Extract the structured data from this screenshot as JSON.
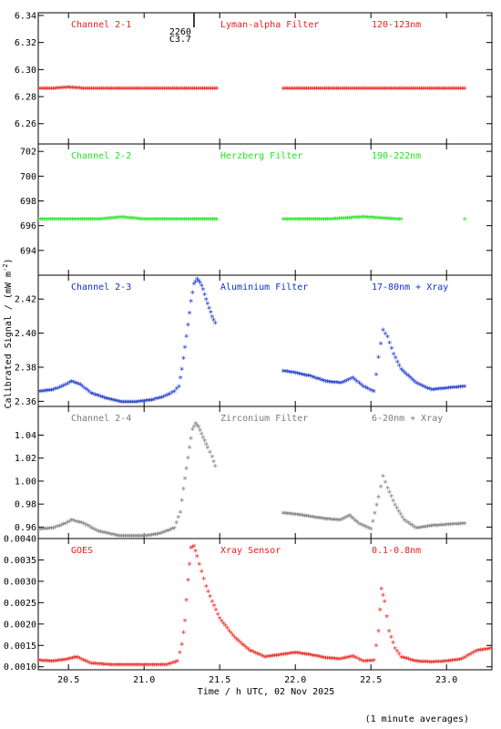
{
  "footer_note": "(1 minute averages)",
  "flare_marker": {
    "x": 21.33,
    "label_top": "2260",
    "label_bottom": "C3.7"
  },
  "chart_data": {
    "type": "scatter",
    "xlabel": "Time / h UTC, 02 Nov 2025",
    "ylabel": "Calibrated Signal / (mW m",
    "ylabel_exp": "-2",
    "ylabel_end": ")",
    "xlim": [
      20.3,
      23.3
    ],
    "xticks": [
      "20.5",
      "21.0",
      "21.5",
      "22.0",
      "22.5",
      "23.0"
    ],
    "grid": false,
    "panels": [
      {
        "channel": "Channel 2-1",
        "filter": "Lyman-alpha Filter",
        "band": "120-123nm",
        "color": "#e8201a",
        "ylim": [
          6.245,
          6.342
        ],
        "yticks": [
          "6.26",
          "6.28",
          "6.30",
          "6.32",
          "6.34"
        ],
        "points": [
          [
            20.3,
            6.285
          ],
          [
            20.4,
            6.285
          ],
          [
            20.5,
            6.286
          ],
          [
            20.6,
            6.285
          ],
          [
            20.8,
            6.285
          ],
          [
            21.0,
            6.285
          ],
          [
            21.2,
            6.285
          ],
          [
            21.4,
            6.285
          ],
          [
            21.48,
            6.285
          ],
          [
            21.92,
            6.285
          ],
          [
            22.1,
            6.285
          ],
          [
            22.3,
            6.285
          ],
          [
            22.5,
            6.285
          ],
          [
            22.7,
            6.285
          ],
          [
            22.9,
            6.285
          ],
          [
            23.12,
            6.285
          ]
        ]
      },
      {
        "channel": "Channel 2-2",
        "filter": "Herzberg Filter",
        "band": "190-222nm",
        "color": "#22e322",
        "ylim": [
          692.0,
          702.6
        ],
        "yticks": [
          "694",
          "696",
          "698",
          "700",
          "702"
        ],
        "points": [
          [
            20.3,
            696.4
          ],
          [
            20.5,
            696.4
          ],
          [
            20.7,
            696.4
          ],
          [
            20.85,
            696.6
          ],
          [
            21.0,
            696.4
          ],
          [
            21.2,
            696.4
          ],
          [
            21.48,
            696.4
          ],
          [
            21.92,
            696.4
          ],
          [
            22.2,
            696.4
          ],
          [
            22.45,
            696.6
          ],
          [
            22.7,
            696.4
          ],
          [
            23.12,
            696.4
          ]
        ]
      },
      {
        "channel": "Channel 2-3",
        "filter": "Aluminium Filter",
        "band": "17-80nm + Xray",
        "color": "#1230c8",
        "ylim": [
          2.357,
          2.434
        ],
        "yticks": [
          "2.36",
          "2.38",
          "2.40",
          "2.42"
        ],
        "points": [
          [
            20.3,
            2.365
          ],
          [
            20.4,
            2.366
          ],
          [
            20.48,
            2.369
          ],
          [
            20.52,
            2.371
          ],
          [
            20.58,
            2.369
          ],
          [
            20.65,
            2.364
          ],
          [
            20.75,
            2.361
          ],
          [
            20.85,
            2.359
          ],
          [
            20.95,
            2.359
          ],
          [
            21.05,
            2.36
          ],
          [
            21.13,
            2.362
          ],
          [
            21.2,
            2.365
          ],
          [
            21.23,
            2.368
          ],
          [
            21.25,
            2.378
          ],
          [
            21.27,
            2.391
          ],
          [
            21.29,
            2.404
          ],
          [
            21.31,
            2.418
          ],
          [
            21.33,
            2.428
          ],
          [
            21.35,
            2.431
          ],
          [
            21.37,
            2.429
          ],
          [
            21.39,
            2.425
          ],
          [
            21.41,
            2.419
          ],
          [
            21.43,
            2.414
          ],
          [
            21.45,
            2.409
          ],
          [
            21.47,
            2.405
          ],
          [
            21.92,
            2.377
          ],
          [
            22.0,
            2.376
          ],
          [
            22.1,
            2.374
          ],
          [
            22.2,
            2.371
          ],
          [
            22.3,
            2.37
          ],
          [
            22.38,
            2.373
          ],
          [
            22.45,
            2.368
          ],
          [
            22.52,
            2.365
          ],
          [
            22.55,
            2.385
          ],
          [
            22.58,
            2.401
          ],
          [
            22.61,
            2.397
          ],
          [
            22.65,
            2.387
          ],
          [
            22.7,
            2.378
          ],
          [
            22.8,
            2.37
          ],
          [
            22.9,
            2.366
          ],
          [
            23.0,
            2.367
          ],
          [
            23.12,
            2.368
          ]
        ]
      },
      {
        "channel": "Channel 2-4",
        "filter": "Zirconium Filter",
        "band": "6-20nm + Xray",
        "color": "#7a7a7a",
        "ylim": [
          0.95,
          1.065
        ],
        "yticks": [
          "0.96",
          "0.98",
          "1.00",
          "1.02",
          "1.04"
        ],
        "points": [
          [
            20.3,
            0.957
          ],
          [
            20.4,
            0.958
          ],
          [
            20.48,
            0.962
          ],
          [
            20.52,
            0.965
          ],
          [
            20.6,
            0.962
          ],
          [
            20.7,
            0.955
          ],
          [
            20.85,
            0.951
          ],
          [
            21.0,
            0.951
          ],
          [
            21.1,
            0.953
          ],
          [
            21.2,
            0.958
          ],
          [
            21.24,
            0.972
          ],
          [
            21.26,
            0.992
          ],
          [
            21.28,
            1.01
          ],
          [
            21.3,
            1.028
          ],
          [
            21.32,
            1.044
          ],
          [
            21.34,
            1.049
          ],
          [
            21.36,
            1.046
          ],
          [
            21.38,
            1.04
          ],
          [
            21.4,
            1.034
          ],
          [
            21.42,
            1.028
          ],
          [
            21.45,
            1.02
          ],
          [
            21.47,
            1.012
          ],
          [
            21.92,
            0.971
          ],
          [
            22.0,
            0.97
          ],
          [
            22.1,
            0.968
          ],
          [
            22.2,
            0.966
          ],
          [
            22.3,
            0.965
          ],
          [
            22.36,
            0.969
          ],
          [
            22.42,
            0.962
          ],
          [
            22.5,
            0.957
          ],
          [
            22.55,
            0.985
          ],
          [
            22.58,
            1.003
          ],
          [
            22.61,
            0.993
          ],
          [
            22.66,
            0.978
          ],
          [
            22.72,
            0.965
          ],
          [
            22.8,
            0.958
          ],
          [
            22.9,
            0.96
          ],
          [
            23.0,
            0.961
          ],
          [
            23.12,
            0.962
          ]
        ]
      },
      {
        "channel": "GOES",
        "filter": "Xray Sensor",
        "band": "0.1-0.8nm",
        "color": "#e8201a",
        "ylim": [
          0.00093,
          0.004
        ],
        "yticks": [
          "0.0010",
          "0.0015",
          "0.0020",
          "0.0025",
          "0.0030",
          "0.0035",
          "0.0040"
        ],
        "points": [
          [
            20.3,
            0.00112
          ],
          [
            20.4,
            0.0011
          ],
          [
            20.5,
            0.00115
          ],
          [
            20.55,
            0.0012
          ],
          [
            20.65,
            0.00105
          ],
          [
            20.8,
            0.00101
          ],
          [
            21.0,
            0.00101
          ],
          [
            21.15,
            0.00102
          ],
          [
            21.22,
            0.0011
          ],
          [
            21.25,
            0.0015
          ],
          [
            21.27,
            0.00205
          ],
          [
            21.29,
            0.003
          ],
          [
            21.31,
            0.00375
          ],
          [
            21.33,
            0.0038
          ],
          [
            21.35,
            0.00355
          ],
          [
            21.38,
            0.0032
          ],
          [
            21.41,
            0.00285
          ],
          [
            21.45,
            0.0025
          ],
          [
            21.5,
            0.0021
          ],
          [
            21.6,
            0.00165
          ],
          [
            21.7,
            0.00135
          ],
          [
            21.8,
            0.0012
          ],
          [
            21.9,
            0.00125
          ],
          [
            22.0,
            0.0013
          ],
          [
            22.1,
            0.00125
          ],
          [
            22.2,
            0.00118
          ],
          [
            22.3,
            0.00115
          ],
          [
            22.38,
            0.00122
          ],
          [
            22.45,
            0.0011
          ],
          [
            22.52,
            0.00112
          ],
          [
            22.55,
            0.0018
          ],
          [
            22.57,
            0.0028
          ],
          [
            22.59,
            0.0025
          ],
          [
            22.62,
            0.0018
          ],
          [
            22.66,
            0.0014
          ],
          [
            22.7,
            0.0012
          ],
          [
            22.8,
            0.0011
          ],
          [
            22.9,
            0.00108
          ],
          [
            23.0,
            0.0011
          ],
          [
            23.1,
            0.00115
          ],
          [
            23.2,
            0.00135
          ],
          [
            23.3,
            0.0014
          ]
        ]
      }
    ]
  }
}
